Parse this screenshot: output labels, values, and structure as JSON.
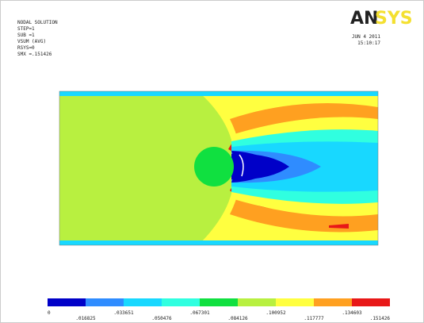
{
  "header": {
    "lines": [
      "NODAL SOLUTION",
      "STEP=1",
      "SUB =1",
      "VSUM    (AVG)",
      "RSYS=0",
      "SMX =.151426"
    ],
    "logo_left": "AN",
    "logo_right": "SYS",
    "date": "JUN  4 2011",
    "time": "15:10:17"
  },
  "legend": {
    "colors": [
      "#0000c8",
      "#2f8cff",
      "#18d8ff",
      "#30ffe0",
      "#10e040",
      "#b8f040",
      "#ffff40",
      "#ffa020",
      "#e81818"
    ],
    "labels": [
      "0",
      ".016825",
      ".033651",
      ".050476",
      ".067301",
      ".084126",
      ".100952",
      ".117777",
      ".134603",
      ".151426"
    ]
  }
}
